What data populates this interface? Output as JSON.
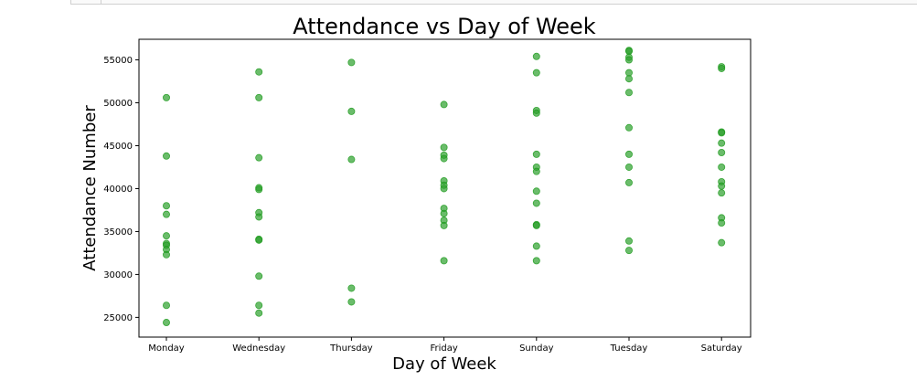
{
  "chart_data": {
    "type": "scatter",
    "title": "Attendance vs Day of Week",
    "xlabel": "Day of Week",
    "ylabel": "Attendance Number",
    "categories": [
      "Monday",
      "Wednesday",
      "Thursday",
      "Friday",
      "Sunday",
      "Tuesday",
      "Saturday"
    ],
    "ylim": [
      22700,
      57400
    ],
    "yticks": [
      25000,
      30000,
      35000,
      40000,
      45000,
      50000,
      55000
    ],
    "grid": false,
    "marker_color": "#2ca02c",
    "marker_edge_color": "#1a9a1a",
    "points": [
      {
        "x": "Monday",
        "y": 50600
      },
      {
        "x": "Monday",
        "y": 43800
      },
      {
        "x": "Monday",
        "y": 38000
      },
      {
        "x": "Monday",
        "y": 37000
      },
      {
        "x": "Monday",
        "y": 34500
      },
      {
        "x": "Monday",
        "y": 33600
      },
      {
        "x": "Monday",
        "y": 33400
      },
      {
        "x": "Monday",
        "y": 32900
      },
      {
        "x": "Monday",
        "y": 32300
      },
      {
        "x": "Monday",
        "y": 26400
      },
      {
        "x": "Monday",
        "y": 24400
      },
      {
        "x": "Wednesday",
        "y": 53600
      },
      {
        "x": "Wednesday",
        "y": 50600
      },
      {
        "x": "Wednesday",
        "y": 43600
      },
      {
        "x": "Wednesday",
        "y": 40100
      },
      {
        "x": "Wednesday",
        "y": 39900
      },
      {
        "x": "Wednesday",
        "y": 37200
      },
      {
        "x": "Wednesday",
        "y": 36700
      },
      {
        "x": "Wednesday",
        "y": 34100
      },
      {
        "x": "Wednesday",
        "y": 34000
      },
      {
        "x": "Wednesday",
        "y": 29800
      },
      {
        "x": "Wednesday",
        "y": 26400
      },
      {
        "x": "Wednesday",
        "y": 25500
      },
      {
        "x": "Thursday",
        "y": 54700
      },
      {
        "x": "Thursday",
        "y": 49000
      },
      {
        "x": "Thursday",
        "y": 43400
      },
      {
        "x": "Thursday",
        "y": 28400
      },
      {
        "x": "Thursday",
        "y": 26800
      },
      {
        "x": "Friday",
        "y": 49800
      },
      {
        "x": "Friday",
        "y": 44800
      },
      {
        "x": "Friday",
        "y": 43900
      },
      {
        "x": "Friday",
        "y": 43500
      },
      {
        "x": "Friday",
        "y": 40900
      },
      {
        "x": "Friday",
        "y": 40400
      },
      {
        "x": "Friday",
        "y": 40000
      },
      {
        "x": "Friday",
        "y": 37700
      },
      {
        "x": "Friday",
        "y": 37100
      },
      {
        "x": "Friday",
        "y": 36300
      },
      {
        "x": "Friday",
        "y": 35700
      },
      {
        "x": "Friday",
        "y": 31600
      },
      {
        "x": "Sunday",
        "y": 55400
      },
      {
        "x": "Sunday",
        "y": 53500
      },
      {
        "x": "Sunday",
        "y": 49100
      },
      {
        "x": "Sunday",
        "y": 48800
      },
      {
        "x": "Sunday",
        "y": 44000
      },
      {
        "x": "Sunday",
        "y": 42500
      },
      {
        "x": "Sunday",
        "y": 42000
      },
      {
        "x": "Sunday",
        "y": 39700
      },
      {
        "x": "Sunday",
        "y": 38300
      },
      {
        "x": "Sunday",
        "y": 35800
      },
      {
        "x": "Sunday",
        "y": 35700
      },
      {
        "x": "Sunday",
        "y": 33300
      },
      {
        "x": "Sunday",
        "y": 31600
      },
      {
        "x": "Tuesday",
        "y": 56100
      },
      {
        "x": "Tuesday",
        "y": 56000
      },
      {
        "x": "Tuesday",
        "y": 55300
      },
      {
        "x": "Tuesday",
        "y": 55000
      },
      {
        "x": "Tuesday",
        "y": 53500
      },
      {
        "x": "Tuesday",
        "y": 52800
      },
      {
        "x": "Tuesday",
        "y": 51200
      },
      {
        "x": "Tuesday",
        "y": 47100
      },
      {
        "x": "Tuesday",
        "y": 44000
      },
      {
        "x": "Tuesday",
        "y": 42500
      },
      {
        "x": "Tuesday",
        "y": 40700
      },
      {
        "x": "Tuesday",
        "y": 33900
      },
      {
        "x": "Tuesday",
        "y": 32800
      },
      {
        "x": "Saturday",
        "y": 54200
      },
      {
        "x": "Saturday",
        "y": 54000
      },
      {
        "x": "Saturday",
        "y": 46600
      },
      {
        "x": "Saturday",
        "y": 46500
      },
      {
        "x": "Saturday",
        "y": 45300
      },
      {
        "x": "Saturday",
        "y": 44200
      },
      {
        "x": "Saturday",
        "y": 42500
      },
      {
        "x": "Saturday",
        "y": 40800
      },
      {
        "x": "Saturday",
        "y": 40300
      },
      {
        "x": "Saturday",
        "y": 39500
      },
      {
        "x": "Saturday",
        "y": 36600
      },
      {
        "x": "Saturday",
        "y": 36000
      },
      {
        "x": "Saturday",
        "y": 33700
      }
    ]
  }
}
